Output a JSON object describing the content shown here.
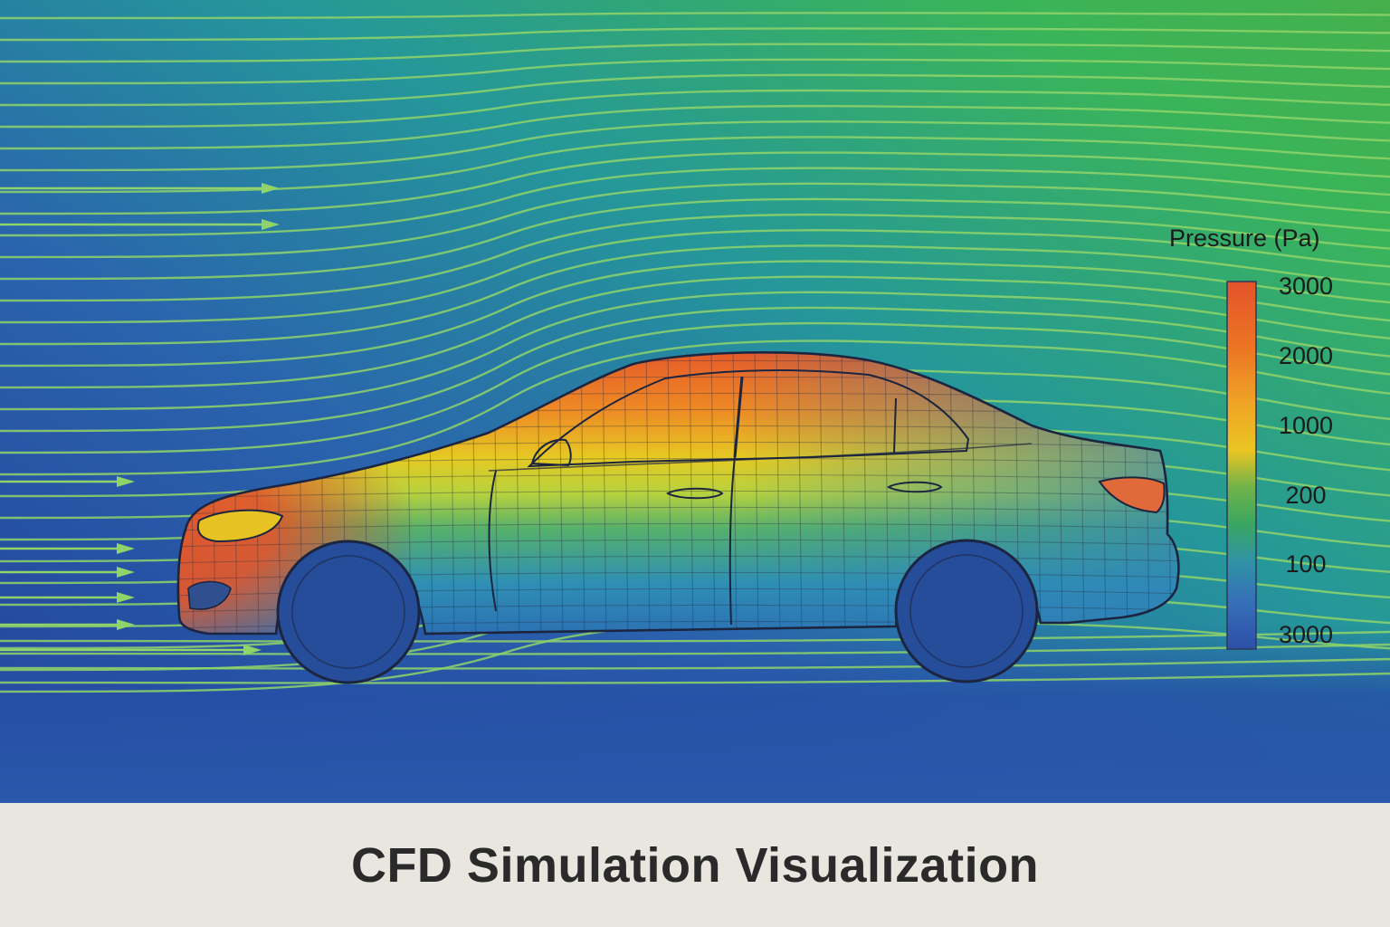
{
  "legend": {
    "title": "Pressure (Pa)",
    "ticks": [
      "3000",
      "2000",
      "1000",
      "200",
      "100",
      "3000"
    ],
    "colors": [
      "#e4532a",
      "#ed7e25",
      "#efa425",
      "#e9c521",
      "#6fb34a",
      "#3aa660",
      "#2f93a5",
      "#3670b8",
      "#2d4fa8"
    ]
  },
  "caption": {
    "title": "CFD Simulation Visualization"
  },
  "colors": {
    "field_blue": "#24509e",
    "field_teal": "#1f8c96",
    "field_green": "#3ab45a",
    "streamline": "#8fd36a",
    "body_hot": "#e4532a",
    "body_mid": "#c9d93a",
    "body_cool": "#2f86b7",
    "wheel": "#264d9a",
    "outline": "#1c2540"
  },
  "icons": [
    "flow-arrow-icon"
  ]
}
